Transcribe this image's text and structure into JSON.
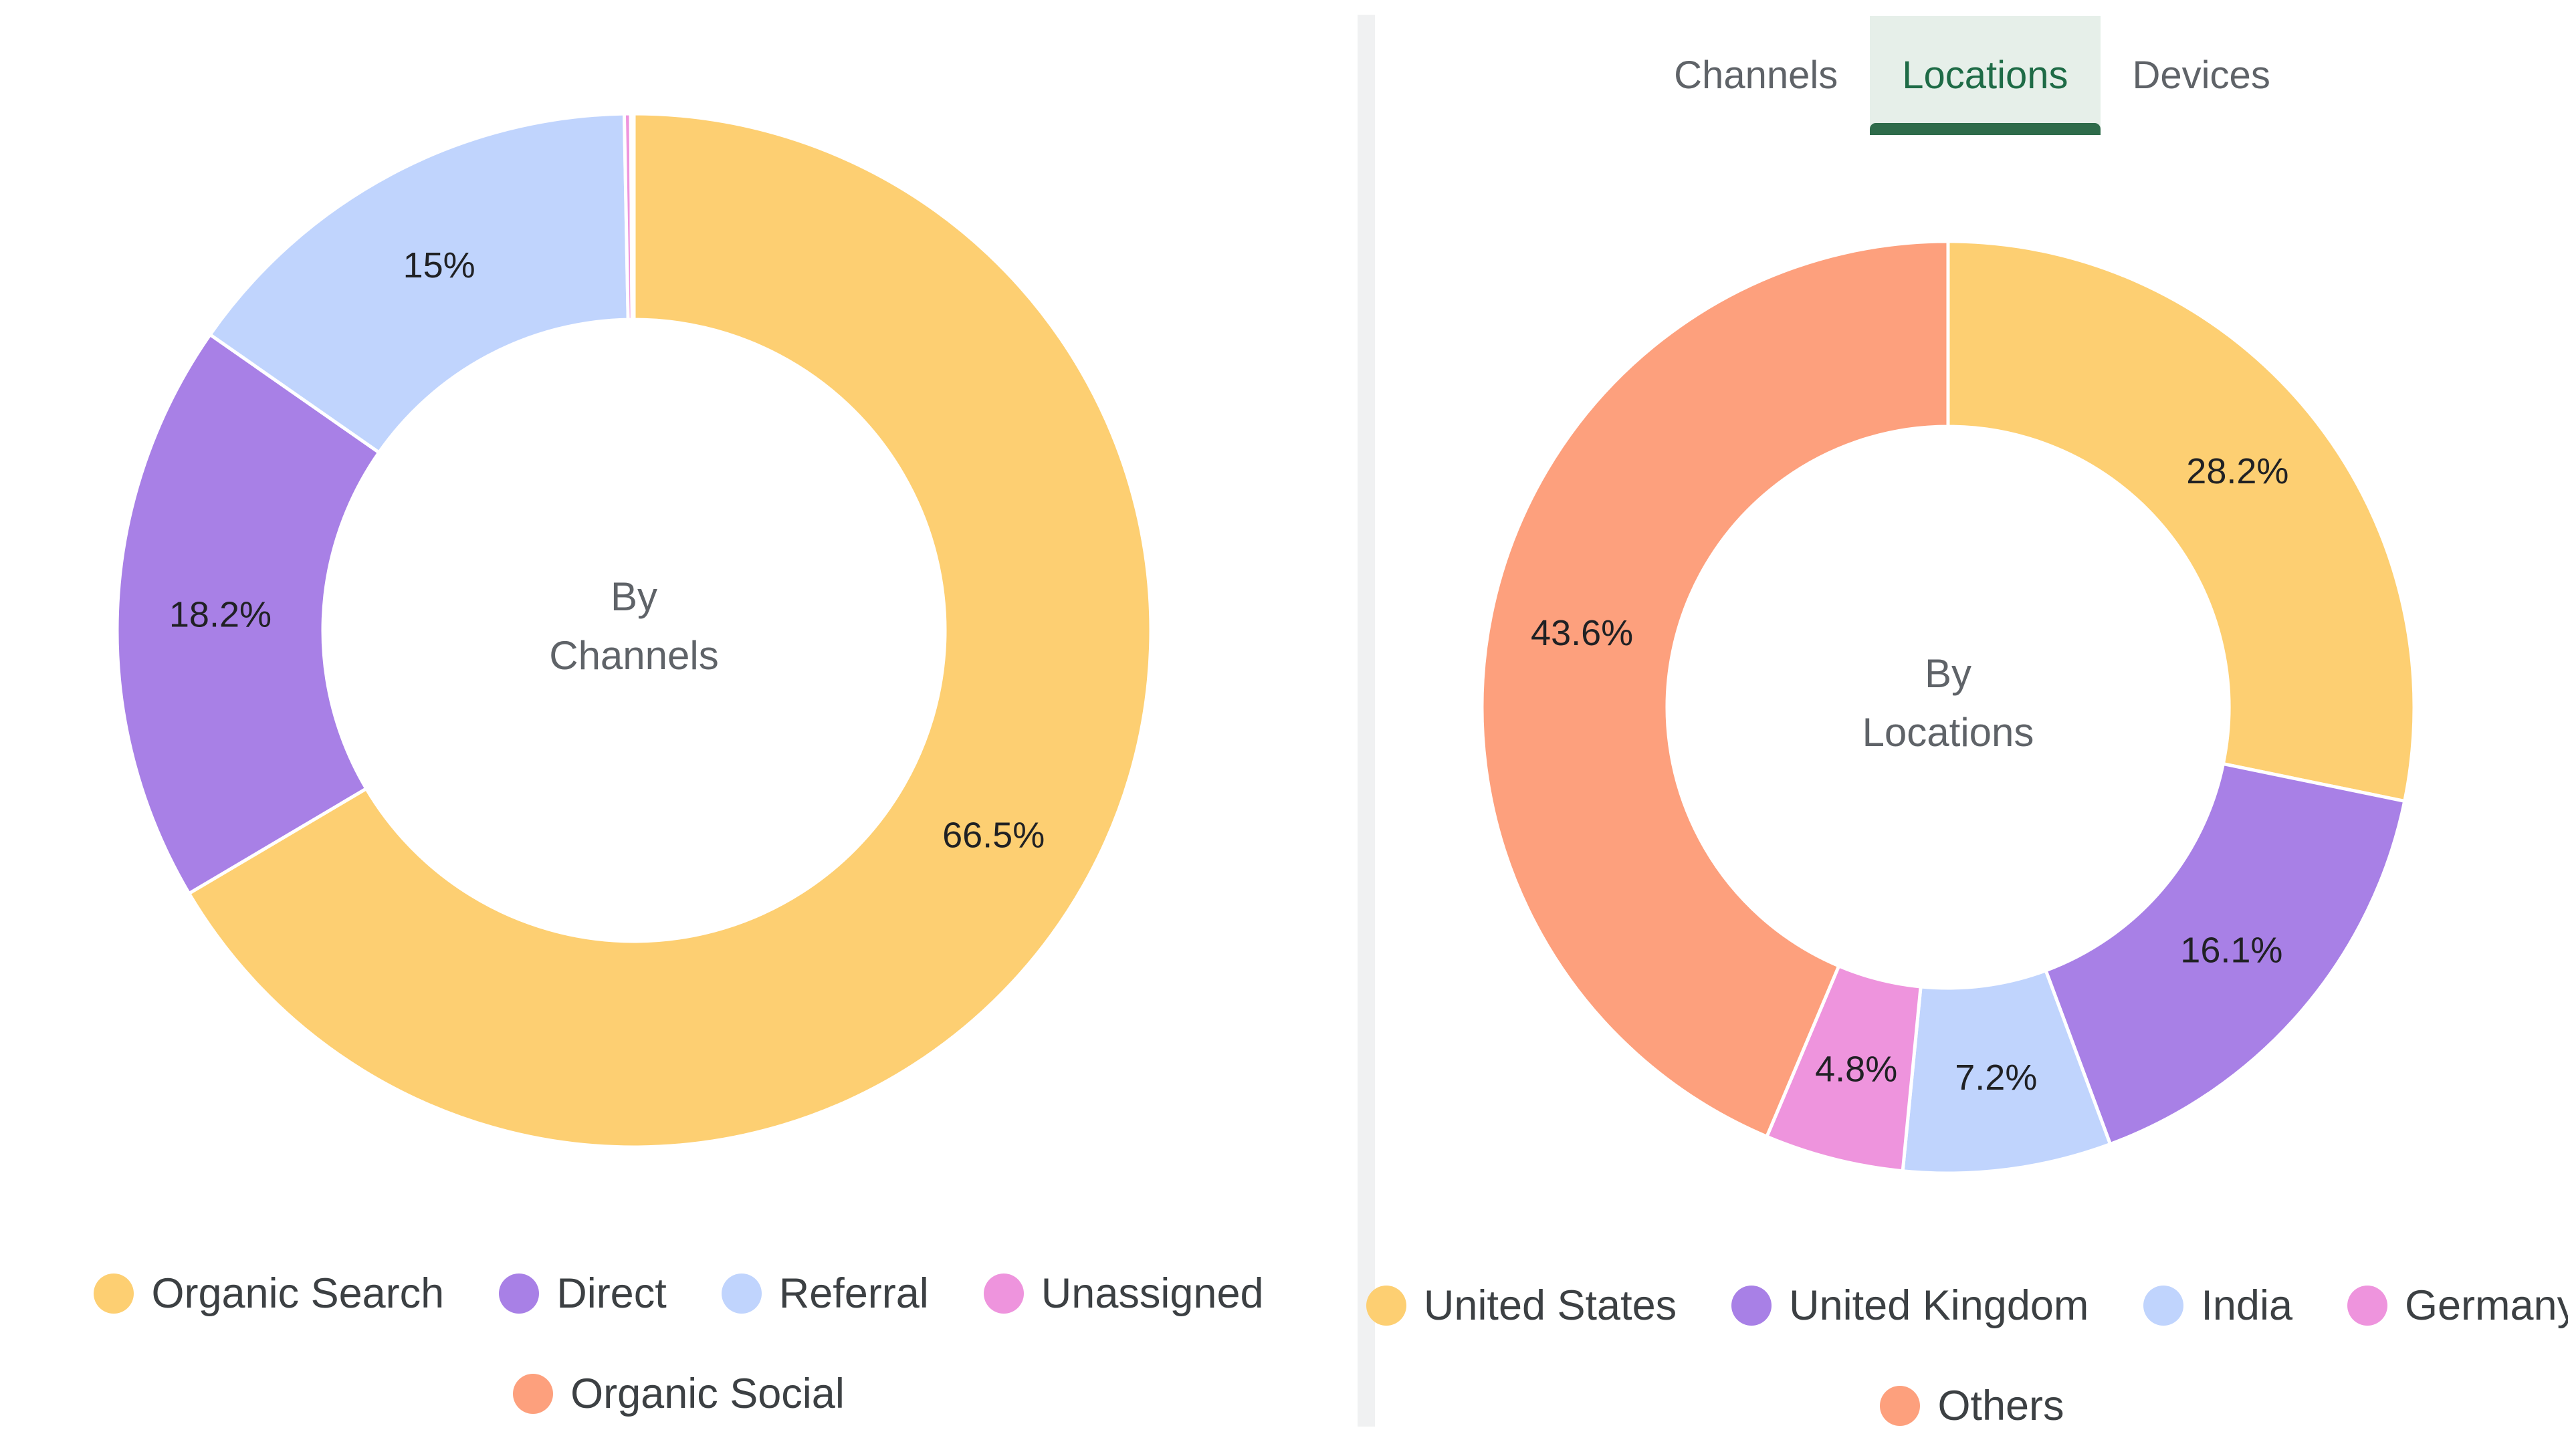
{
  "tabs": [
    {
      "label": "Channels",
      "active": false
    },
    {
      "label": "Locations",
      "active": true
    },
    {
      "label": "Devices",
      "active": false
    }
  ],
  "chart_data": [
    {
      "type": "pie",
      "donut": true,
      "center_label": [
        "By",
        "Channels"
      ],
      "legend_placement": "bottom",
      "categories": [
        "Organic Search",
        "Direct",
        "Referral",
        "Unassigned",
        "Organic Social"
      ],
      "values": [
        66.5,
        18.2,
        15.0,
        0.2,
        0.1
      ],
      "data_labels": [
        "66.5%",
        "18.2%",
        "15%",
        "",
        ""
      ],
      "colors": [
        "#fdcf72",
        "#a880e6",
        "#c0d4fd",
        "#ee94dd",
        "#fda07d"
      ]
    },
    {
      "type": "pie",
      "donut": true,
      "center_label": [
        "By",
        "Locations"
      ],
      "legend_placement": "bottom",
      "categories": [
        "United States",
        "United Kingdom",
        "India",
        "Germany",
        "Others"
      ],
      "values": [
        28.2,
        16.1,
        7.2,
        4.8,
        43.6
      ],
      "data_labels": [
        "28.2%",
        "16.1%",
        "7.2%",
        "4.8%",
        "43.6%"
      ],
      "colors": [
        "#fdcf72",
        "#a880e6",
        "#c0d4fd",
        "#ee94dd",
        "#fda07d"
      ]
    }
  ]
}
